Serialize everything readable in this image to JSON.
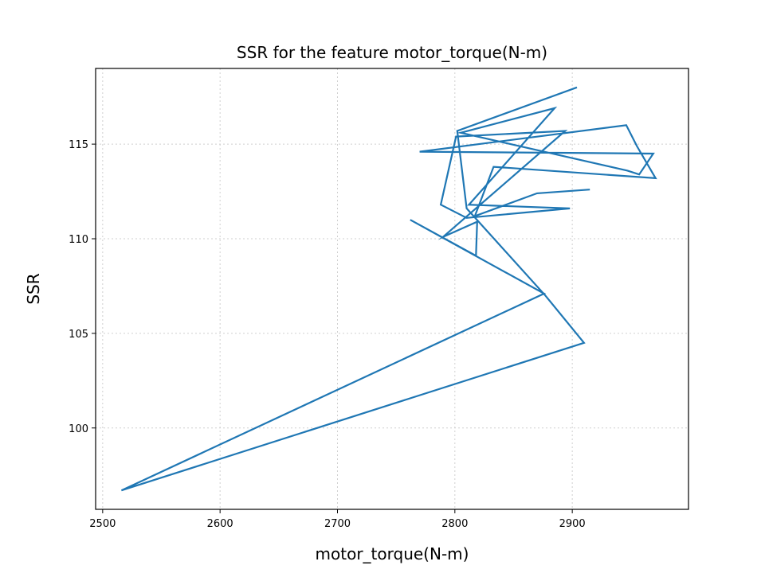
{
  "chart_data": {
    "type": "line",
    "title": "SSR for the feature motor_torque(N-m)",
    "xlabel": "motor_torque(N-m)",
    "ylabel": "SSR",
    "xlim": [
      2494,
      2999
    ],
    "ylim": [
      95.7,
      119.0
    ],
    "xticks": [
      2500,
      2600,
      2700,
      2800,
      2900
    ],
    "yticks": [
      100,
      105,
      110,
      115
    ],
    "grid": true,
    "line_color": "#1f77b4",
    "series": [
      {
        "x": [
          2915,
          2870,
          2817,
          2833,
          2971,
          2955,
          2946,
          2770,
          2969,
          2957,
          2947,
          2805,
          2885,
          2812,
          2898,
          2810,
          2788,
          2801,
          2894,
          2790,
          2819,
          2818,
          2762,
          2876,
          2516,
          2910,
          2877,
          2810,
          2802,
          2904
        ],
        "y": [
          112.6,
          112.4,
          111.2,
          113.8,
          113.2,
          114.9,
          116.0,
          114.6,
          114.5,
          113.4,
          113.6,
          115.6,
          116.9,
          111.8,
          111.6,
          111.1,
          111.8,
          115.4,
          115.7,
          110.1,
          110.9,
          109.1,
          111.0,
          107.1,
          96.7,
          104.5,
          107.0,
          111.6,
          115.7,
          118.0
        ]
      }
    ]
  }
}
